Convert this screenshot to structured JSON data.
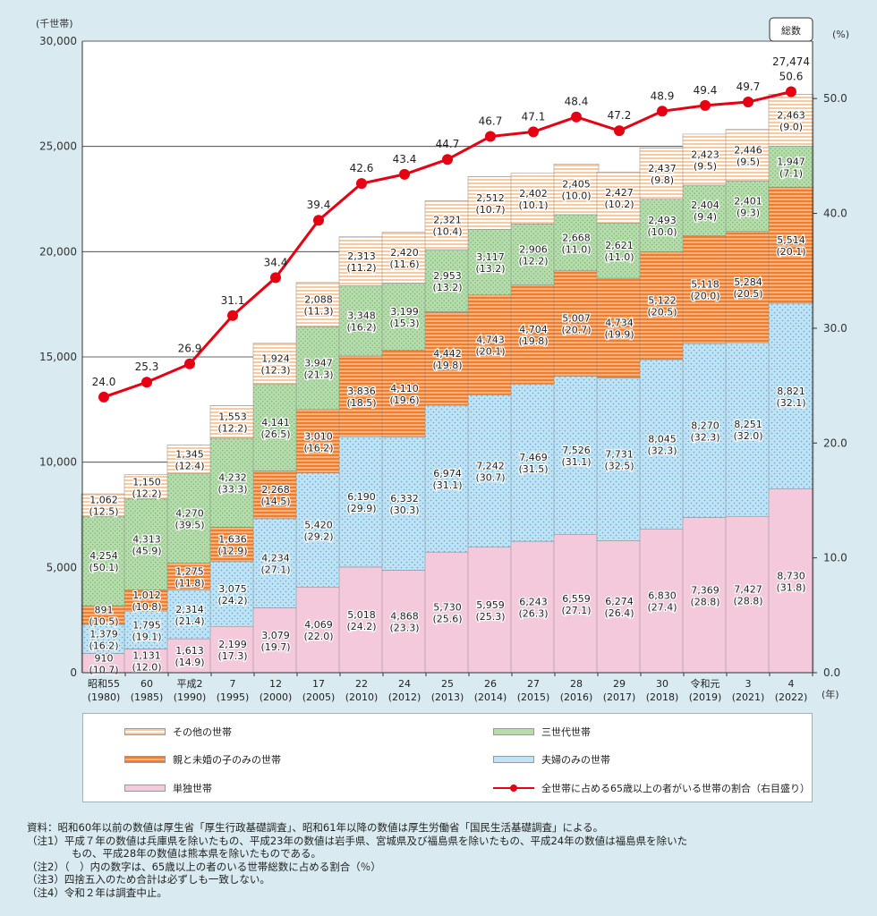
{
  "chart_data": {
    "type": "bar",
    "stacked": true,
    "y_unit_label": "(千世帯)",
    "y2_unit_label": "(%)",
    "x_unit_label": "(年)",
    "ylim": [
      0,
      30000
    ],
    "y_ticks": [
      "0",
      "5,000",
      "10,000",
      "15,000",
      "20,000",
      "25,000",
      "30,000"
    ],
    "y2lim": [
      0,
      55
    ],
    "y2_ticks": [
      "0.0",
      "10.0",
      "20.0",
      "30.0",
      "40.0",
      "50.0"
    ],
    "categories": [
      {
        "era": "昭和55",
        "year": "(1980)"
      },
      {
        "era": "60",
        "year": "(1985)"
      },
      {
        "era": "平成2",
        "year": "(1990)"
      },
      {
        "era": "7",
        "year": "(1995)"
      },
      {
        "era": "12",
        "year": "(2000)"
      },
      {
        "era": "17",
        "year": "(2005)"
      },
      {
        "era": "22",
        "year": "(2010)"
      },
      {
        "era": "24",
        "year": "(2012)"
      },
      {
        "era": "25",
        "year": "(2013)"
      },
      {
        "era": "26",
        "year": "(2014)"
      },
      {
        "era": "27",
        "year": "(2015)"
      },
      {
        "era": "28",
        "year": "(2016)"
      },
      {
        "era": "29",
        "year": "(2017)"
      },
      {
        "era": "30",
        "year": "(2018)"
      },
      {
        "era": "令和元",
        "year": "(2019)"
      },
      {
        "era": "3",
        "year": "(2021)"
      },
      {
        "era": "4",
        "year": "(2022)"
      }
    ],
    "series": [
      {
        "name": "単独世帯",
        "color": "#f4c9dc",
        "values": [
          910,
          1131,
          1613,
          2199,
          3079,
          4069,
          5018,
          4868,
          5730,
          5959,
          6243,
          6559,
          6274,
          6830,
          7369,
          7427,
          8730
        ],
        "labels": [
          "910",
          "1,131",
          "1,613",
          "2,199",
          "3,079",
          "4,069",
          "5,018",
          "4,868",
          "5,730",
          "5,959",
          "6,243",
          "6,559",
          "6,274",
          "6,830",
          "7,369",
          "7,427",
          "8,730"
        ],
        "shares": [
          "(10.7)",
          "(12.0)",
          "(14.9)",
          "(17.3)",
          "(19.7)",
          "(22.0)",
          "(24.2)",
          "(23.3)",
          "(25.6)",
          "(25.3)",
          "(26.3)",
          "(27.1)",
          "(26.4)",
          "(27.4)",
          "(28.8)",
          "(28.8)",
          "(31.8)"
        ]
      },
      {
        "name": "夫婦のみの世帯",
        "color": "#bfe3f4",
        "values": [
          1379,
          1795,
          2314,
          3075,
          4234,
          5420,
          6190,
          6332,
          6974,
          7242,
          7469,
          7526,
          7731,
          8045,
          8270,
          8251,
          8821
        ],
        "labels": [
          "1,379",
          "1,795",
          "2,314",
          "3,075",
          "4,234",
          "5,420",
          "6,190",
          "6,332",
          "6,974",
          "7,242",
          "7,469",
          "7,526",
          "7,731",
          "8,045",
          "8,270",
          "8,251",
          "8,821"
        ],
        "shares": [
          "(16.2)",
          "(19.1)",
          "(21.4)",
          "(24.2)",
          "(27.1)",
          "(29.2)",
          "(29.9)",
          "(30.3)",
          "(31.1)",
          "(30.7)",
          "(31.5)",
          "(31.1)",
          "(32.5)",
          "(32.3)",
          "(32.3)",
          "(32.0)",
          "(32.1)"
        ]
      },
      {
        "name": "親と未婚の子のみの世帯",
        "color": "#ef8a3c",
        "values": [
          891,
          1012,
          1275,
          1636,
          2268,
          3010,
          3836,
          4110,
          4442,
          4743,
          4704,
          5007,
          4734,
          5122,
          5118,
          5284,
          5514
        ],
        "labels": [
          "891",
          "1,012",
          "1,275",
          "1,636",
          "2,268",
          "3,010",
          "3,836",
          "4,110",
          "4,442",
          "4,743",
          "4,704",
          "5,007",
          "4,734",
          "5,122",
          "5,118",
          "5,284",
          "5,514"
        ],
        "shares": [
          "(10.5)",
          "(10.8)",
          "(11.8)",
          "(12.9)",
          "(14.5)",
          "(16.2)",
          "(18.5)",
          "(19.6)",
          "(19.8)",
          "(20.1)",
          "(19.8)",
          "(20.7)",
          "(19.9)",
          "(20.5)",
          "(20.0)",
          "(20.5)",
          "(20.1)"
        ]
      },
      {
        "name": "三世代世帯",
        "color": "#a9d6a0",
        "values": [
          4254,
          4313,
          4270,
          4232,
          4141,
          3947,
          3348,
          3199,
          2953,
          3117,
          2906,
          2668,
          2621,
          2493,
          2404,
          2401,
          1947
        ],
        "labels": [
          "4,254",
          "4,313",
          "4,270",
          "4,232",
          "4,141",
          "3,947",
          "3,348",
          "3,199",
          "2,953",
          "3,117",
          "2,906",
          "2,668",
          "2,621",
          "2,493",
          "2,404",
          "2,401",
          "1,947"
        ],
        "shares": [
          "(50.1)",
          "(45.9)",
          "(39.5)",
          "(33.3)",
          "(26.5)",
          "(21.3)",
          "(16.2)",
          "(15.3)",
          "(13.2)",
          "(13.2)",
          "(12.2)",
          "(11.0)",
          "(11.0)",
          "(10.0)",
          "(9.4)",
          "(9.3)",
          "(7.1)"
        ]
      },
      {
        "name": "その他の世帯",
        "color": "#fbd2b0",
        "values": [
          1062,
          1150,
          1345,
          1553,
          1924,
          2088,
          2313,
          2420,
          2321,
          2512,
          2402,
          2405,
          2427,
          2437,
          2423,
          2446,
          2463
        ],
        "labels": [
          "1,062",
          "1,150",
          "1,345",
          "1,553",
          "1,924",
          "2,088",
          "2,313",
          "2,420",
          "2,321",
          "2,512",
          "2,402",
          "2,405",
          "2,427",
          "2,437",
          "2,423",
          "2,446",
          "2,463"
        ],
        "shares": [
          "(12.5)",
          "(12.2)",
          "(12.4)",
          "(12.2)",
          "(12.3)",
          "(11.3)",
          "(11.2)",
          "(11.6)",
          "(10.4)",
          "(10.7)",
          "(10.1)",
          "(10.0)",
          "(10.2)",
          "(9.8)",
          "(9.5)",
          "(9.5)",
          "(9.0)"
        ]
      }
    ],
    "line": {
      "name": "全世帯に占める65歳以上の者がいる世帯の割合（右目盛り）",
      "color": "#e60012",
      "values": [
        24.0,
        25.3,
        26.9,
        31.1,
        34.4,
        39.4,
        42.6,
        43.4,
        44.7,
        46.7,
        47.1,
        48.4,
        47.2,
        48.9,
        49.4,
        49.7,
        50.6
      ],
      "labels": [
        "24.0",
        "25.3",
        "26.9",
        "31.1",
        "34.4",
        "39.4",
        "42.6",
        "43.4",
        "44.7",
        "46.7",
        "47.1",
        "48.4",
        "47.2",
        "48.9",
        "49.4",
        "49.7",
        "50.6"
      ]
    },
    "total_callout": {
      "label": "総数",
      "value": "27,474"
    }
  },
  "legend": {
    "other": "その他の世帯",
    "three_gen": "三世代世帯",
    "parent_child": "親と未婚の子のみの世帯",
    "couple": "夫婦のみの世帯",
    "single": "単独世帯",
    "line": "全世帯に占める65歳以上の者がいる世帯の割合（右目盛り）"
  },
  "notes": {
    "source": "資料：昭和60年以前の数値は厚生省「厚生行政基礎調査」、昭和61年以降の数値は厚生労働省「国民生活基礎調査」による。",
    "note1a": "（注1）平成７年の数値は兵庫県を除いたもの、平成23年の数値は岩手県、宮城県及び福島県を除いたもの、平成24年の数値は福島県を除いた",
    "note1b": "もの、平成28年の数値は熊本県を除いたものである。",
    "note2": "（注2）（　）内の数字は、65歳以上の者のいる世帯総数に占める割合（％）",
    "note3": "（注3）四捨五入のため合計は必ずしも一致しない。",
    "note4": "（注4）令和２年は調査中止。"
  }
}
